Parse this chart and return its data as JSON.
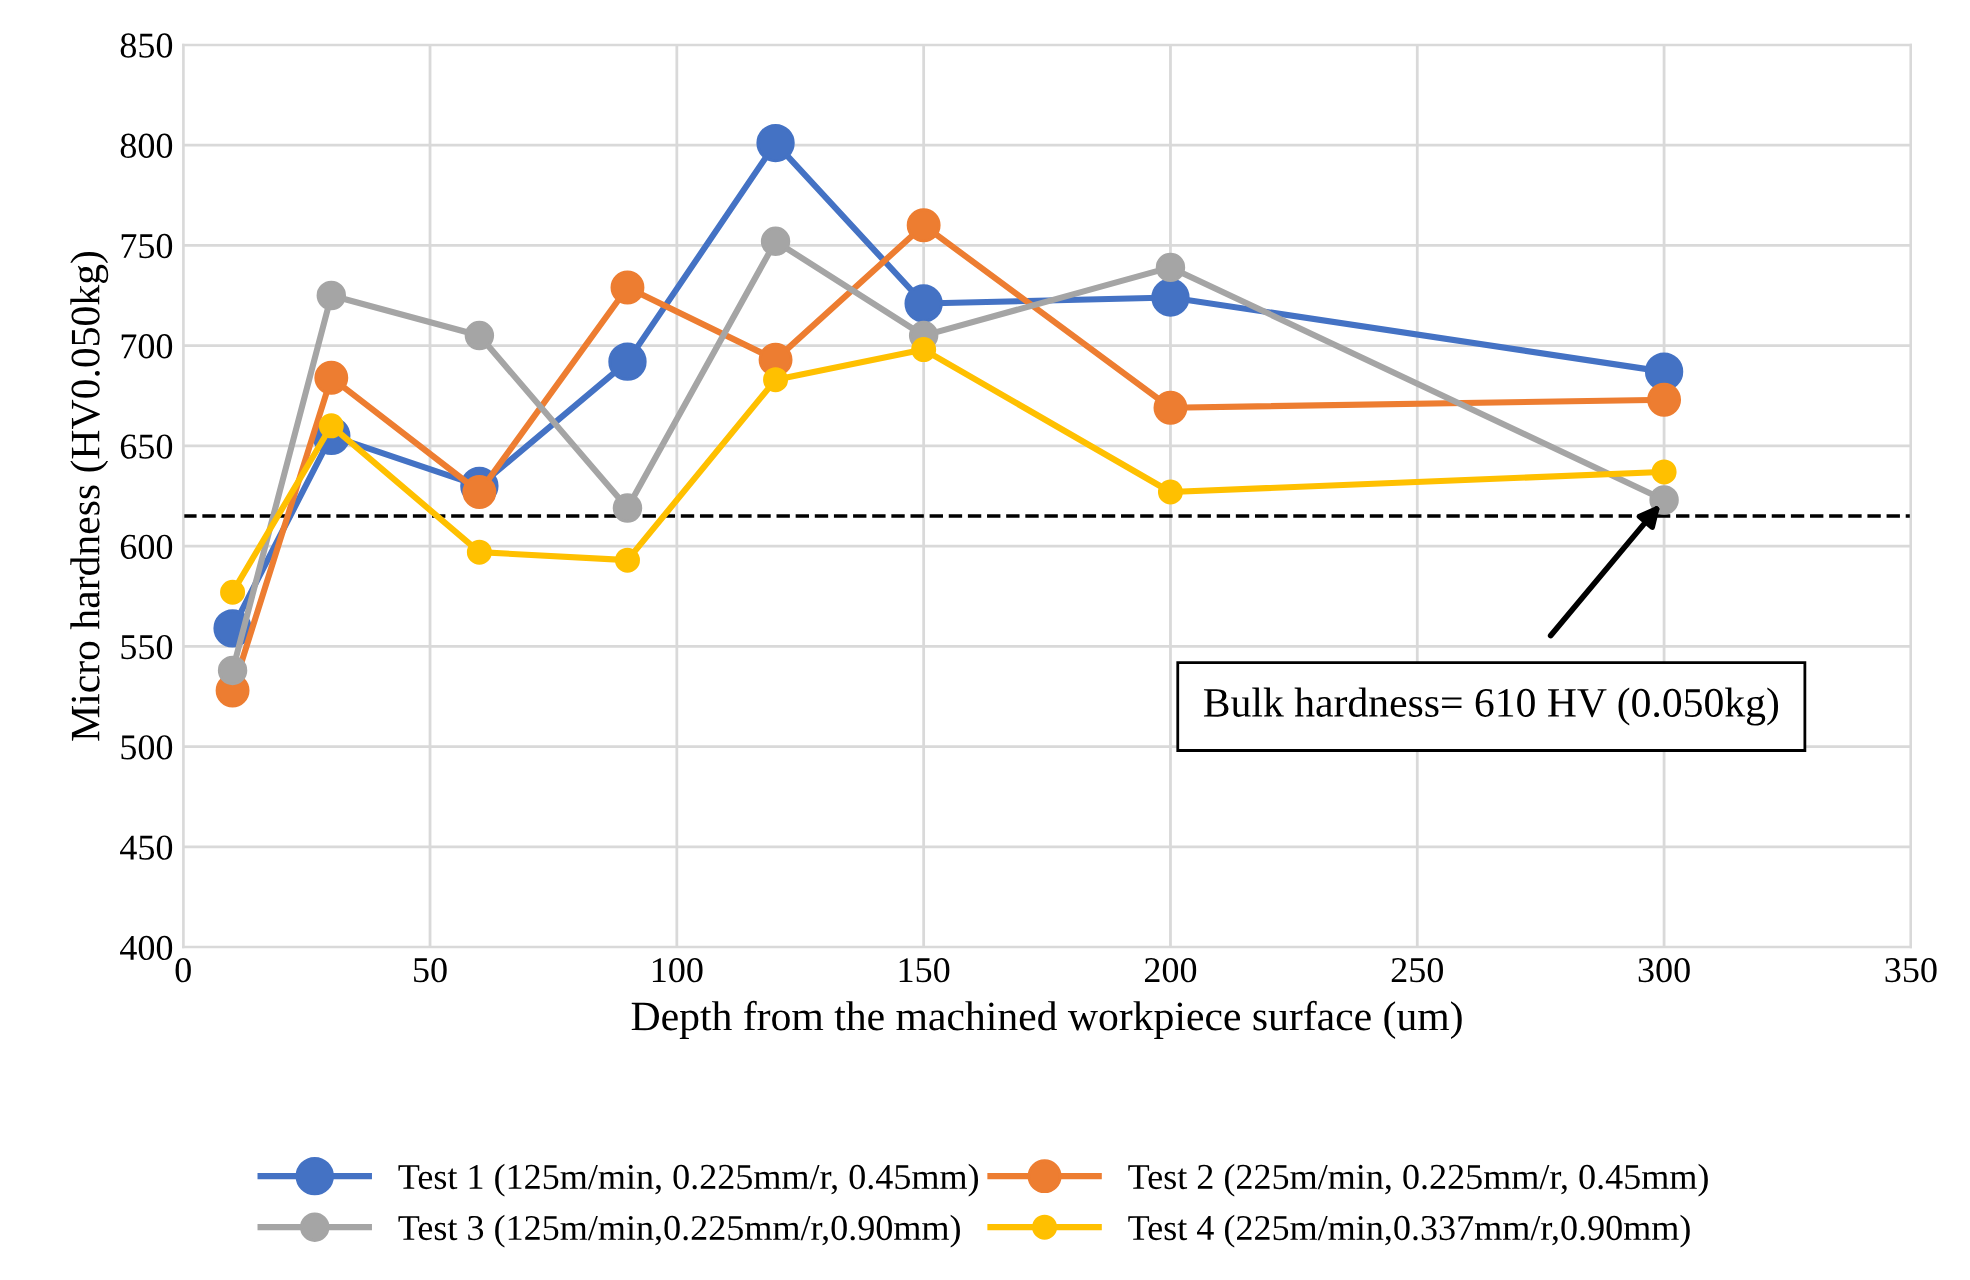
{
  "chart_data": {
    "type": "line",
    "xlabel": "Depth from the machined workpiece surface (um)",
    "ylabel": "Micro hardness (HV0.050kg)",
    "x": [
      10,
      30,
      60,
      90,
      120,
      150,
      200,
      300
    ],
    "series": [
      {
        "name": "Test 1 (125m/min, 0.225mm/r, 0.45mm)",
        "color": "#4472c4",
        "values": [
          559,
          655,
          630,
          692,
          801,
          721,
          724,
          687
        ]
      },
      {
        "name": "Test 2 (225m/min, 0.225mm/r, 0.45mm)",
        "color": "#ed7d31",
        "values": [
          528,
          684,
          627,
          729,
          693,
          760,
          669,
          673
        ]
      },
      {
        "name": "Test 3 (125m/min,0.225mm/r,0.90mm)",
        "color": "#a5a5a5",
        "values": [
          538,
          725,
          705,
          619,
          752,
          705,
          739,
          623
        ]
      },
      {
        "name": "Test 4 (225m/min,0.337mm/r,0.90mm)",
        "color": "#ffc000",
        "values": [
          577,
          660,
          597,
          593,
          683,
          698,
          627,
          637
        ]
      }
    ],
    "xlim": [
      0,
      350
    ],
    "xticks": [
      0,
      50,
      100,
      150,
      200,
      250,
      300,
      350
    ],
    "ylim": [
      400,
      850
    ],
    "yticks": [
      400,
      450,
      500,
      550,
      600,
      650,
      700,
      750,
      800,
      850
    ],
    "ref_lines": [
      {
        "axis": "y",
        "value": 615,
        "color": "#000000",
        "line_style": "dashed"
      }
    ],
    "annotations": [
      {
        "text": "Bulk hardness= 610 HV (0.050kg)",
        "x": 300,
        "y": 623
      }
    ],
    "grid": true,
    "legend": "bottom",
    "marker": "circle",
    "line_style": "solid"
  }
}
